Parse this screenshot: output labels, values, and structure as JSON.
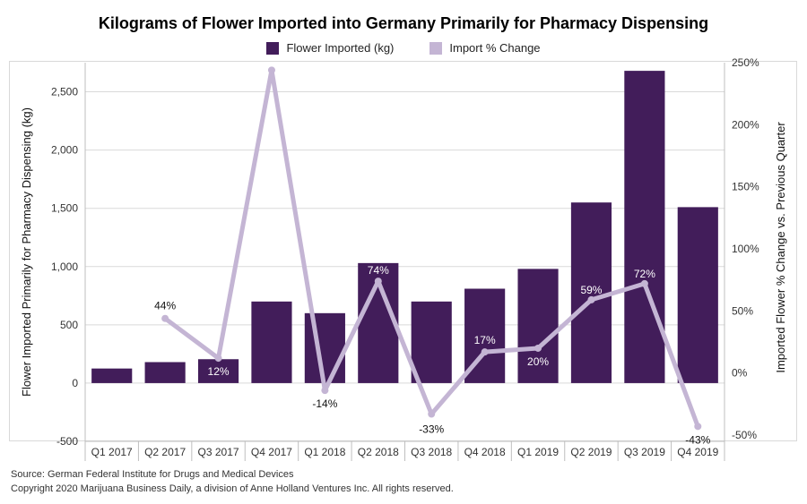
{
  "colors": {
    "bars": "#421d5a",
    "line": "#c4b5d4",
    "grid": "#d9d9d9",
    "label_on_bar": "#ffffff",
    "label_off_bar": "#111111"
  },
  "legend": {
    "bars_label": "Flower Imported (kg)",
    "line_label": "Import % Change"
  },
  "footer": {
    "source": "Source: German Federal Institute for Drugs and Medical Devices",
    "copyright": "Copyright 2020 Marijuana Business Daily, a division of Anne Holland Ventures Inc. All rights reserved."
  },
  "chart_data": {
    "type": "bar",
    "title": "Kilograms of Flower Imported into Germany Primarily for Pharmacy Dispensing",
    "categories": [
      "Q1 2017",
      "Q2 2017",
      "Q3 2017",
      "Q4 2017",
      "Q1 2018",
      "Q2 2018",
      "Q3 2018",
      "Q4 2018",
      "Q1 2019",
      "Q2 2019",
      "Q3 2019",
      "Q4 2019"
    ],
    "series": [
      {
        "name": "Flower Imported (kg)",
        "type": "bar",
        "axis": "left",
        "values": [
          125,
          180,
          205,
          700,
          600,
          1030,
          700,
          810,
          980,
          1550,
          2680,
          1510
        ]
      },
      {
        "name": "Import % Change",
        "type": "line",
        "axis": "right",
        "values": [
          null,
          44,
          12,
          244,
          -14,
          74,
          -33,
          17,
          20,
          59,
          72,
          -43
        ],
        "labels": [
          "",
          "44%",
          "12%",
          "",
          "-14%",
          "74%",
          "-33%",
          "17%",
          "20%",
          "59%",
          "72%",
          "-43%"
        ]
      }
    ],
    "ylabel": "Flower Imported Primarily for Pharmacy Dispensing (kg)",
    "y2label": "Imported Flower % Change vs. Previous Quarter",
    "ylim": [
      -500,
      2750
    ],
    "yticks": [
      -500,
      0,
      500,
      1000,
      1500,
      2000,
      2500
    ],
    "ytick_labels": [
      "-500",
      "0",
      "500",
      "1,000",
      "1,500",
      "2,000",
      "2,500"
    ],
    "y2lim": [
      -55,
      250
    ],
    "y2ticks": [
      -50,
      0,
      50,
      100,
      150,
      200,
      250
    ],
    "y2tick_labels": [
      "-50%",
      "0%",
      "50%",
      "100%",
      "150%",
      "200%",
      "250%"
    ],
    "grid": true,
    "legend_position": "top-center"
  }
}
